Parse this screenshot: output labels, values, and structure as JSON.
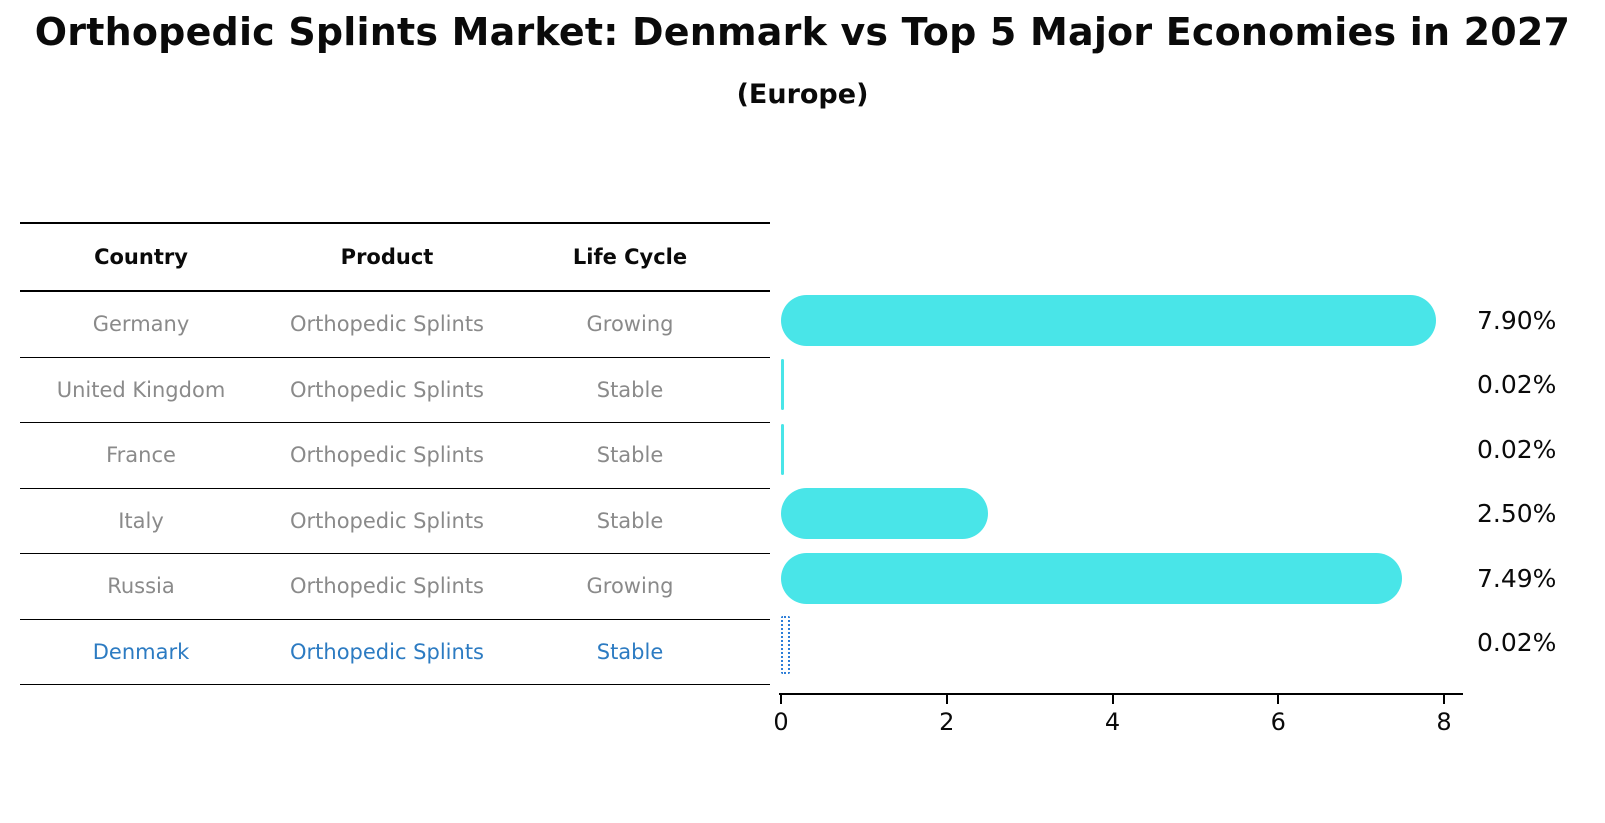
{
  "title": "Orthopedic Splints Market: Denmark vs Top 5 Major Economies in 2027",
  "subtitle": "(Europe)",
  "colors": {
    "bar": "#49e5e8",
    "highlight_bar": "#2e7ed8",
    "row_text": "#8a8a8a",
    "highlight_text": "#2c7bc2",
    "axis": "#000000"
  },
  "table": {
    "headers": [
      "Country",
      "Product",
      "Life Cycle"
    ],
    "rows": [
      {
        "country": "Germany",
        "product": "Orthopedic Splints",
        "life_cycle": "Growing",
        "highlight": false
      },
      {
        "country": "United Kingdom",
        "product": "Orthopedic Splints",
        "life_cycle": "Stable",
        "highlight": false
      },
      {
        "country": "France",
        "product": "Orthopedic Splints",
        "life_cycle": "Stable",
        "highlight": false
      },
      {
        "country": "Italy",
        "product": "Orthopedic Splints",
        "life_cycle": "Stable",
        "highlight": false
      },
      {
        "country": "Russia",
        "product": "Orthopedic Splints",
        "life_cycle": "Growing",
        "highlight": false
      },
      {
        "country": "Denmark",
        "product": "Orthopedic Splints",
        "life_cycle": "Stable",
        "highlight": true
      }
    ]
  },
  "chart_data": {
    "type": "bar",
    "orientation": "horizontal",
    "title": "Orthopedic Splints Market: Denmark vs Top 5 Major Economies in 2027 (Europe)",
    "categories": [
      "Germany",
      "United Kingdom",
      "France",
      "Italy",
      "Russia",
      "Denmark"
    ],
    "values": [
      7.9,
      0.02,
      0.02,
      2.5,
      7.49,
      0.02
    ],
    "labels": [
      "7.90%",
      "0.02%",
      "0.02%",
      "2.50%",
      "7.49%",
      "0.02%"
    ],
    "xlabel": "",
    "ylabel": "",
    "xlim": [
      0,
      8.2
    ],
    "xticks": [
      "0",
      "2",
      "4",
      "6",
      "8"
    ],
    "grid": false,
    "legend": false,
    "highlight_category": "Denmark"
  }
}
